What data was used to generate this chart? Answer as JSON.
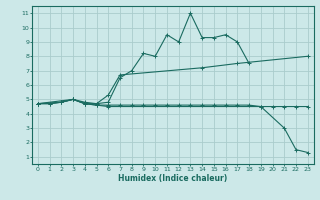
{
  "xlabel": "Humidex (Indice chaleur)",
  "bg_color": "#cce8e8",
  "grid_color": "#aacccc",
  "line_color": "#1a6b60",
  "xlim": [
    -0.5,
    23.5
  ],
  "ylim": [
    0.5,
    11.5
  ],
  "xticks": [
    0,
    1,
    2,
    3,
    4,
    5,
    6,
    7,
    8,
    9,
    10,
    11,
    12,
    13,
    14,
    15,
    16,
    17,
    18,
    19,
    20,
    21,
    22,
    23
  ],
  "yticks": [
    1,
    2,
    3,
    4,
    5,
    6,
    7,
    8,
    9,
    10,
    11
  ],
  "lines": [
    {
      "x": [
        0,
        1,
        2,
        3,
        4,
        5,
        6,
        7,
        8,
        9,
        10,
        11,
        12,
        13,
        14,
        15,
        16,
        17,
        18
      ],
      "y": [
        4.7,
        4.7,
        4.8,
        5.0,
        4.8,
        4.7,
        4.8,
        6.5,
        7.0,
        8.2,
        8.0,
        9.5,
        9.0,
        11.0,
        9.3,
        9.3,
        9.5,
        9.0,
        7.5
      ]
    },
    {
      "x": [
        0,
        3,
        4,
        5,
        6,
        7,
        14,
        17,
        23
      ],
      "y": [
        4.7,
        5.0,
        4.7,
        4.7,
        5.3,
        6.7,
        7.2,
        7.5,
        8.0
      ]
    },
    {
      "x": [
        0,
        2,
        3,
        4,
        5,
        6,
        19,
        21,
        22,
        23
      ],
      "y": [
        4.7,
        4.8,
        5.0,
        4.7,
        4.6,
        4.5,
        4.5,
        3.0,
        1.5,
        1.3
      ]
    },
    {
      "x": [
        0,
        1,
        2,
        3,
        4,
        5,
        6,
        7,
        8,
        9,
        10,
        11,
        12,
        13,
        14,
        15,
        16,
        17,
        18,
        19,
        20,
        21,
        22,
        23
      ],
      "y": [
        4.7,
        4.7,
        4.8,
        5.0,
        4.7,
        4.6,
        4.6,
        4.6,
        4.6,
        4.6,
        4.6,
        4.6,
        4.6,
        4.6,
        4.6,
        4.6,
        4.6,
        4.6,
        4.6,
        4.5,
        4.5,
        4.5,
        4.5,
        4.5
      ]
    }
  ]
}
